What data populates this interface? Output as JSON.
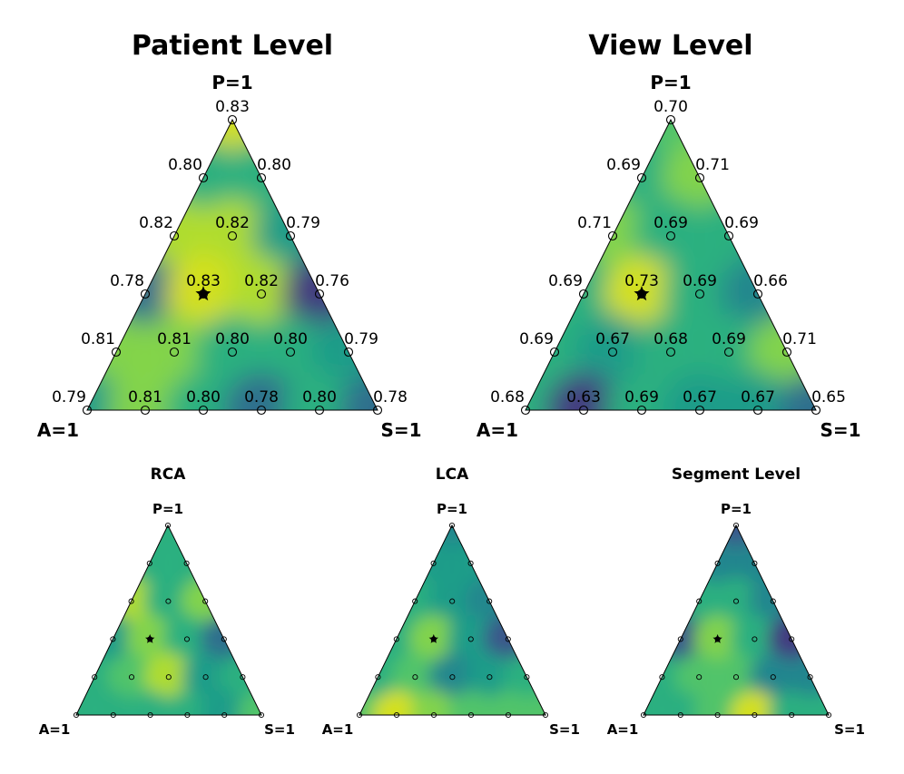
{
  "colors": {
    "palette": [
      "#453781",
      "#3b528b",
      "#2f6c8e",
      "#25858e",
      "#1e9c89",
      "#2ab07f",
      "#52c569",
      "#86d549",
      "#b5de2b",
      "#dde318"
    ],
    "marker": "#000000"
  },
  "chart_data": [
    {
      "type": "ternary-contour",
      "title": "Patient Level",
      "axes": {
        "top": "P=1",
        "left": "A=1",
        "right": "S=1"
      },
      "grid_step": 0.2,
      "rows": [
        {
          "P": 1.0,
          "values": [
            "0.83"
          ]
        },
        {
          "P": 0.8,
          "values": [
            "0.80",
            "0.80"
          ]
        },
        {
          "P": 0.6,
          "values": [
            "0.82",
            "0.82",
            "0.79"
          ]
        },
        {
          "P": 0.4,
          "values": [
            "0.78",
            "0.83",
            "0.82",
            "0.76"
          ]
        },
        {
          "P": 0.2,
          "values": [
            "0.81",
            "0.81",
            "0.80",
            "0.80",
            "0.79"
          ]
        },
        {
          "P": 0.0,
          "values": [
            "0.79",
            "0.81",
            "0.80",
            "0.78",
            "0.80",
            "0.78"
          ]
        }
      ],
      "best": {
        "P": 0.4,
        "A": 0.4,
        "S": 0.2,
        "value": "0.83"
      },
      "range": [
        0.76,
        0.83
      ]
    },
    {
      "type": "ternary-contour",
      "title": "View Level",
      "axes": {
        "top": "P=1",
        "left": "A=1",
        "right": "S=1"
      },
      "grid_step": 0.2,
      "rows": [
        {
          "P": 1.0,
          "values": [
            "0.70"
          ]
        },
        {
          "P": 0.8,
          "values": [
            "0.69",
            "0.71"
          ]
        },
        {
          "P": 0.6,
          "values": [
            "0.71",
            "0.69",
            "0.69"
          ]
        },
        {
          "P": 0.4,
          "values": [
            "0.69",
            "0.73",
            "0.69",
            "0.66"
          ]
        },
        {
          "P": 0.2,
          "values": [
            "0.69",
            "0.67",
            "0.68",
            "0.69",
            "0.71"
          ]
        },
        {
          "P": 0.0,
          "values": [
            "0.68",
            "0.63",
            "0.69",
            "0.67",
            "0.67",
            "0.65"
          ]
        }
      ],
      "best": {
        "P": 0.4,
        "A": 0.4,
        "S": 0.2,
        "value": "0.73"
      },
      "range": [
        0.63,
        0.73
      ]
    },
    {
      "type": "ternary-contour",
      "title": "RCA",
      "axes": {
        "top": "P=1",
        "left": "A=1",
        "right": "S=1"
      },
      "grid_step": 0.2,
      "rows": [
        {
          "P": 1.0,
          "values": [
            0.5
          ]
        },
        {
          "P": 0.8,
          "values": [
            0.55,
            0.5
          ]
        },
        {
          "P": 0.6,
          "values": [
            0.85,
            0.5,
            0.75
          ]
        },
        {
          "P": 0.4,
          "values": [
            0.4,
            0.7,
            0.55,
            0.2
          ]
        },
        {
          "P": 0.2,
          "values": [
            0.5,
            0.65,
            0.85,
            0.45,
            0.5
          ]
        },
        {
          "P": 0.0,
          "values": [
            0.55,
            0.5,
            0.5,
            0.55,
            0.45,
            0.6
          ]
        }
      ],
      "best": {
        "P": 0.4,
        "A": 0.4,
        "S": 0.2
      },
      "range": [
        0,
        1
      ]
    },
    {
      "type": "ternary-contour",
      "title": "LCA",
      "axes": {
        "top": "P=1",
        "left": "A=1",
        "right": "S=1"
      },
      "grid_step": 0.2,
      "rows": [
        {
          "P": 1.0,
          "values": [
            0.35
          ]
        },
        {
          "P": 0.8,
          "values": [
            0.4,
            0.45
          ]
        },
        {
          "P": 0.6,
          "values": [
            0.5,
            0.45,
            0.3
          ]
        },
        {
          "P": 0.4,
          "values": [
            0.5,
            0.75,
            0.4,
            0.15
          ]
        },
        {
          "P": 0.2,
          "values": [
            0.55,
            0.6,
            0.35,
            0.45,
            0.5
          ]
        },
        {
          "P": 0.0,
          "values": [
            0.65,
            0.95,
            0.7,
            0.6,
            0.6,
            0.65
          ]
        }
      ],
      "best": {
        "P": 0.4,
        "A": 0.4,
        "S": 0.2
      },
      "range": [
        0,
        1
      ]
    },
    {
      "type": "ternary-contour",
      "title": "Segment Level",
      "axes": {
        "top": "P=1",
        "left": "A=1",
        "right": "S=1"
      },
      "grid_step": 0.2,
      "rows": [
        {
          "P": 1.0,
          "values": [
            0.15
          ]
        },
        {
          "P": 0.8,
          "values": [
            0.35,
            0.3
          ]
        },
        {
          "P": 0.6,
          "values": [
            0.5,
            0.55,
            0.35
          ]
        },
        {
          "P": 0.4,
          "values": [
            0.15,
            0.7,
            0.55,
            0.05
          ]
        },
        {
          "P": 0.2,
          "values": [
            0.5,
            0.65,
            0.6,
            0.35,
            0.35
          ]
        },
        {
          "P": 0.0,
          "values": [
            0.5,
            0.55,
            0.6,
            0.9,
            0.55,
            0.5
          ]
        }
      ],
      "best": {
        "P": 0.4,
        "A": 0.4,
        "S": 0.2
      },
      "range": [
        0,
        1
      ]
    }
  ]
}
